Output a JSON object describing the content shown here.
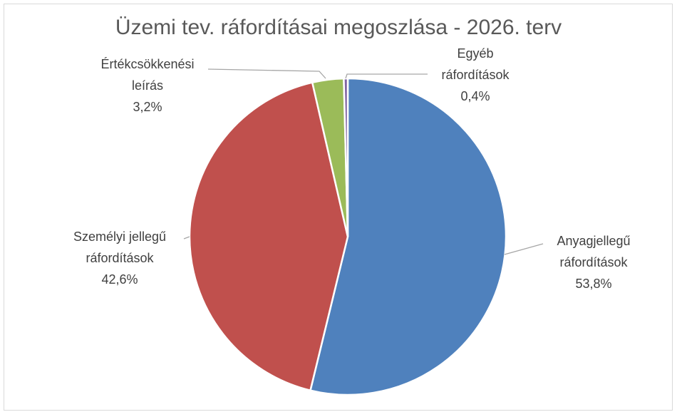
{
  "chart_data": {
    "type": "pie",
    "title": "Üzemi tev. ráfordításai megoszlása - 2026. terv",
    "categories": [
      "Anyagjellegű ráfordítások",
      "Személyi jellegű ráfordítások",
      "Értékcsökkenési leírás",
      "Egyéb ráfordítások"
    ],
    "values": [
      53.8,
      42.6,
      3.2,
      0.4
    ],
    "value_labels": [
      "53,8%",
      "42,6%",
      "3,2%",
      "0,4%"
    ],
    "colors": [
      "#4f81bd",
      "#c0504d",
      "#9bbb59",
      "#8064a2"
    ]
  }
}
